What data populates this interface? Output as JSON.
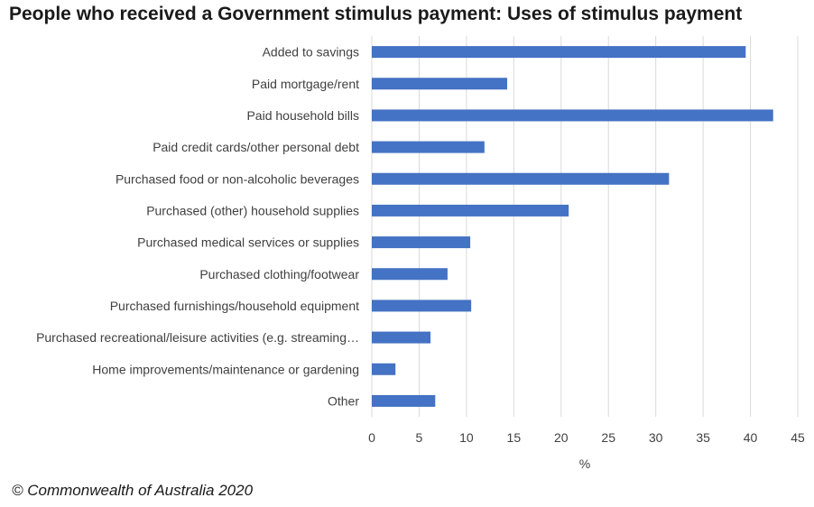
{
  "chart_data": {
    "type": "bar",
    "orientation": "horizontal",
    "title": "People who received a Government stimulus payment: Uses of stimulus payment",
    "xlabel": "%",
    "ylabel": "",
    "categories": [
      "Added to savings",
      "Paid mortgage/rent",
      "Paid household bills",
      "Paid credit cards/other personal debt",
      "Purchased food or non-alcoholic beverages",
      "Purchased (other) household supplies",
      "Purchased medical services or supplies",
      "Purchased clothing/footwear",
      "Purchased furnishings/household equipment",
      "Purchased recreational/leisure activities (e.g. streaming…",
      "Home improvements/maintenance or gardening",
      "Other"
    ],
    "values": [
      39.5,
      14.3,
      42.4,
      11.9,
      31.4,
      20.8,
      10.4,
      8.0,
      10.5,
      6.2,
      2.5,
      6.7
    ],
    "xlim": [
      0,
      45
    ],
    "xticks": [
      0,
      5,
      10,
      15,
      20,
      25,
      30,
      35,
      40,
      45
    ],
    "grid": "vertical",
    "legend": "none",
    "bar_color": "#4472C4",
    "grid_color": "#d9d9d9"
  },
  "footer": {
    "copyright": "© Commonwealth of Australia 2020"
  }
}
